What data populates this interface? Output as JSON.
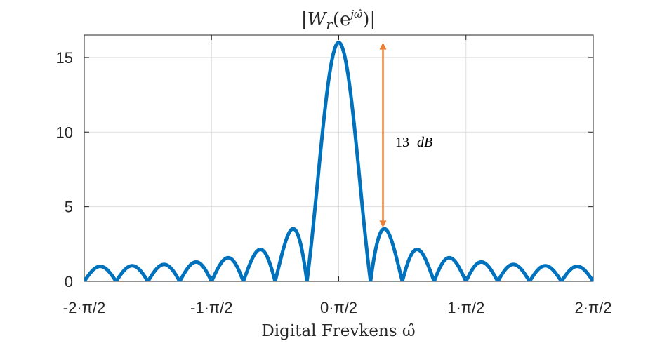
{
  "chart_data": {
    "type": "line",
    "title": "|W_r(e^{jω̂})|",
    "title_parts": {
      "open_bar": "|",
      "w": "W",
      "sub": "r",
      "paren_open": "(e",
      "sup": "jω̂",
      "paren_close": ")",
      "close_bar": "|"
    },
    "xlabel": "Digital Frevkens ω̂",
    "ylabel": "",
    "xlim": [
      -3.1416,
      3.1416
    ],
    "ylim": [
      0,
      16.5
    ],
    "xticks": [
      {
        "value": -3.1416,
        "label": "-2·π/2"
      },
      {
        "value": -1.5708,
        "label": "-1·π/2"
      },
      {
        "value": 0,
        "label": "0·π/2"
      },
      {
        "value": 1.5708,
        "label": "1·π/2"
      },
      {
        "value": 3.1416,
        "label": "2·π/2"
      }
    ],
    "yticks": [
      {
        "value": 0,
        "label": "0"
      },
      {
        "value": 5,
        "label": "5"
      },
      {
        "value": 10,
        "label": "10"
      },
      {
        "value": 15,
        "label": "15"
      }
    ],
    "grid": true,
    "series": [
      {
        "window_length": 16,
        "color": "#0072BD"
      }
    ],
    "annotation": {
      "text": "13 dB",
      "text_number": "13",
      "text_unit": "dB",
      "color": "#ED7D31",
      "x": 0.546,
      "y_top": 16,
      "y_bottom": 3.6
    }
  }
}
